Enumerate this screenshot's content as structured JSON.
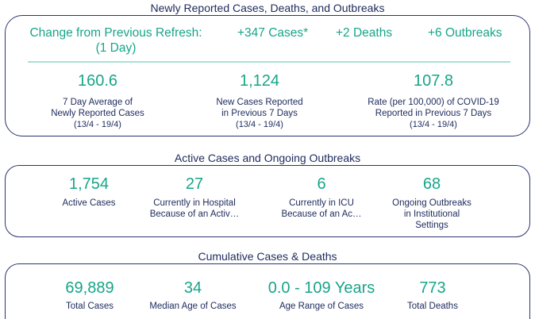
{
  "sections": {
    "summary_title": "Newly Reported Cases, Deaths, and Outbreaks",
    "active_title": "Active Cases and Ongoing Outbreaks",
    "cumulative_title": "Cumulative Cases & Deaths"
  },
  "summary": {
    "change_label_line1": "Change from Previous Refresh:",
    "change_label_line2": "(1 Day)",
    "cases_change": "+347 Cases*",
    "deaths_change": "+2 Deaths",
    "outbreaks_change": "+6 Outbreaks",
    "stats": [
      {
        "value": "160.6",
        "line1": "7 Day Average of",
        "line2": "Newly Reported Cases",
        "line3": "(13/4 - 19/4)"
      },
      {
        "value": "1,124",
        "line1": "New Cases Reported",
        "line2": "in Previous 7 Days",
        "line3": "(13/4 - 19/4)"
      },
      {
        "value": "107.8",
        "line1": "Rate (per 100,000) of COVID-19",
        "line2": "Reported in Previous 7 Days",
        "line3": "(13/4 - 19/4)"
      }
    ]
  },
  "active": {
    "stats": [
      {
        "value": "1,754",
        "line1": "Active Cases",
        "line2": "",
        "line3": ""
      },
      {
        "value": "27",
        "line1": "Currently in Hospital",
        "line2": "Because of an Activ…",
        "line3": ""
      },
      {
        "value": "6",
        "line1": "Currently in ICU",
        "line2": "Because of an Ac…",
        "line3": ""
      },
      {
        "value": "68",
        "line1": "Ongoing Outbreaks",
        "line2": "in Institutional",
        "line3": "Settings"
      }
    ]
  },
  "cumulative": {
    "stats": [
      {
        "value": "69,889",
        "label": "Total Cases"
      },
      {
        "value": "34",
        "label": "Median Age of Cases"
      },
      {
        "value": "0.0 - 109 Years",
        "label": "Age Range of Cases"
      },
      {
        "value": "773",
        "label": "Total Deaths"
      }
    ]
  },
  "colors": {
    "accent": "#17a589",
    "text": "#1d2a5c",
    "border": "#2a3570"
  }
}
